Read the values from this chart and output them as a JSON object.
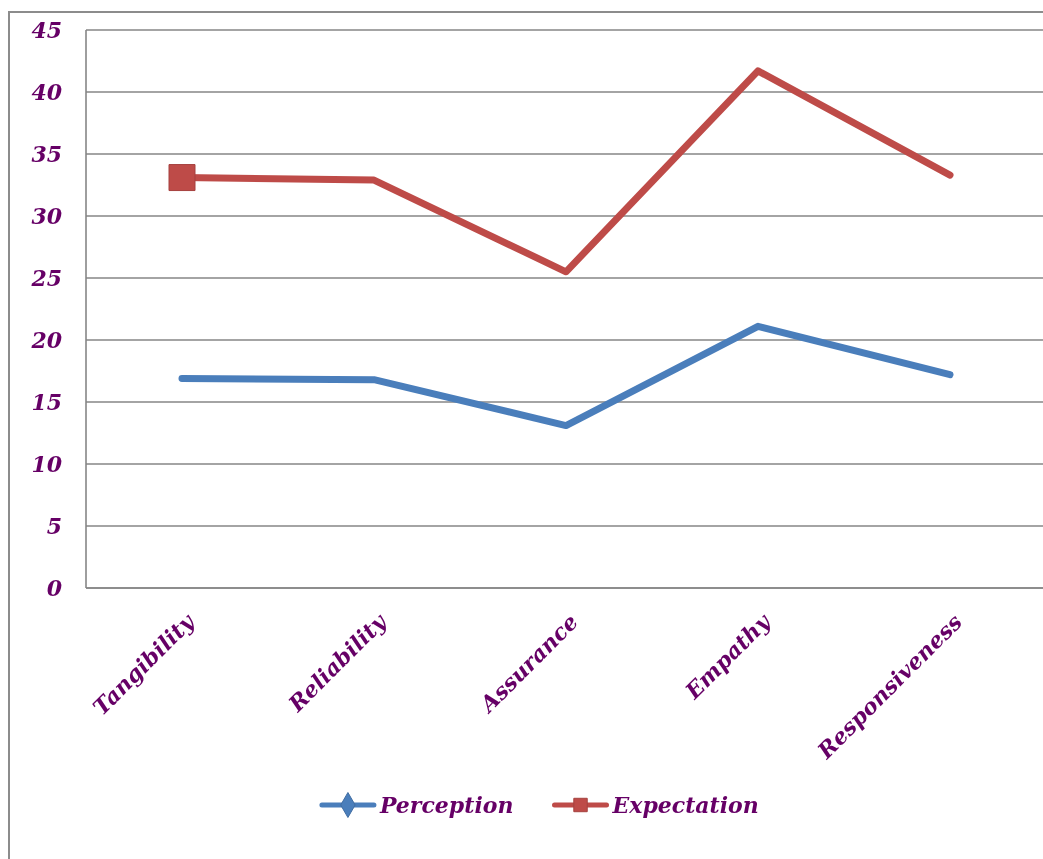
{
  "chart_data": {
    "type": "line",
    "categories": [
      "Tangibility",
      "Reliability",
      "Assurance",
      "Empathy",
      "Responsiveness"
    ],
    "series": [
      {
        "name": "Perception",
        "color": "#4a7ebb",
        "values": [
          16.9,
          16.8,
          13.1,
          21.1,
          17.2
        ]
      },
      {
        "name": "Expectation",
        "color": "#be4b48",
        "values": [
          33.1,
          32.9,
          25.5,
          41.7,
          33.3
        ]
      },
      {
        "type": "scatter",
        "color": "#be4b48",
        "values": [
          33.1,
          null,
          null,
          null,
          null
        ],
        "marker": "square"
      }
    ],
    "ylim": [
      0,
      45
    ],
    "yticks": [
      0,
      5,
      10,
      15,
      20,
      25,
      30,
      35,
      40,
      45
    ],
    "grid": "y",
    "legend": "bottom"
  }
}
